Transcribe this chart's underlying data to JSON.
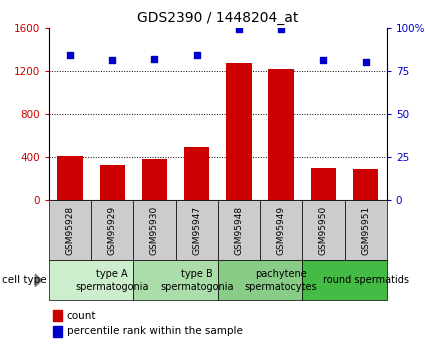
{
  "title": "GDS2390 / 1448204_at",
  "samples": [
    "GSM95928",
    "GSM95929",
    "GSM95930",
    "GSM95947",
    "GSM95948",
    "GSM95949",
    "GSM95950",
    "GSM95951"
  ],
  "counts": [
    410,
    330,
    380,
    490,
    1270,
    1220,
    300,
    285
  ],
  "percentile_ranks": [
    84,
    81,
    82,
    84,
    99,
    99,
    81,
    80
  ],
  "left_ylim": [
    0,
    1600
  ],
  "right_ylim": [
    0,
    100
  ],
  "left_yticks": [
    0,
    400,
    800,
    1200,
    1600
  ],
  "right_yticks": [
    0,
    25,
    50,
    75,
    100
  ],
  "left_yticklabels": [
    "0",
    "400",
    "800",
    "1200",
    "1600"
  ],
  "right_yticklabels": [
    "0",
    "25",
    "50",
    "75",
    "100%"
  ],
  "bar_color": "#cc0000",
  "dot_color": "#0000cc",
  "groups": [
    {
      "label": "type A\nspermatogonia",
      "start": 0,
      "end": 2,
      "color": "#cceecc"
    },
    {
      "label": "type B\nspermatogonia",
      "start": 2,
      "end": 4,
      "color": "#aaddaa"
    },
    {
      "label": "pachytene\nspermatocytes",
      "start": 4,
      "end": 6,
      "color": "#88cc88"
    },
    {
      "label": "round spermatids",
      "start": 6,
      "end": 8,
      "color": "#44bb44"
    }
  ],
  "cell_type_label": "cell type",
  "legend_count_label": "count",
  "legend_percentile_label": "percentile rank within the sample",
  "grid_color": "#000000",
  "sample_box_color": "#cccccc",
  "background_color": "#ffffff",
  "title_fontsize": 10,
  "tick_fontsize": 7.5,
  "sample_fontsize": 6.5,
  "group_fontsize": 7
}
